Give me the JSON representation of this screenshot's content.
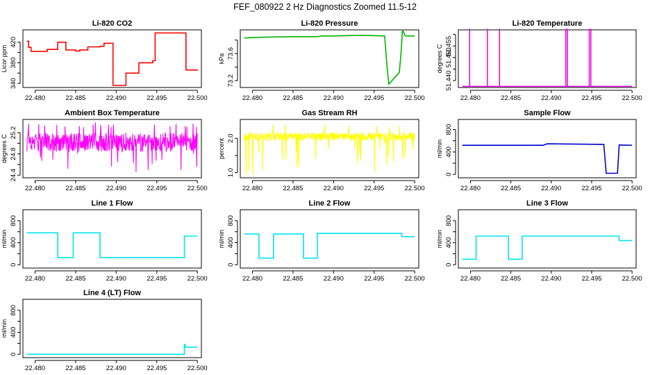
{
  "figure": {
    "suptitle": "FEF_080922  2 Hz Diagnostics Zoomed 11.5-12"
  },
  "chart_data": [
    {
      "type": "line",
      "title": "Li-820 CO2",
      "ylabel": "Licor ppm",
      "color": "#ff0000",
      "xlim": [
        22.4785,
        22.5005
      ],
      "ylim": [
        332,
        444
      ],
      "xticks": [
        22.48,
        22.485,
        22.49,
        22.495,
        22.5
      ],
      "yticks": [
        340,
        360,
        380,
        400,
        420
      ],
      "ytick_labels": [
        "340",
        "",
        "380",
        "",
        "420"
      ],
      "style": "step",
      "series": [
        {
          "x": [
            22.479,
            22.4792,
            22.4795,
            22.481,
            22.4815,
            22.4825,
            22.4828,
            22.4835,
            22.4838,
            22.485,
            22.4855,
            22.4862,
            22.4865,
            22.488,
            22.4885,
            22.4893,
            22.4896,
            22.4908,
            22.4912,
            22.4925,
            22.4928,
            22.4945,
            22.4948,
            22.4983,
            22.4986,
            22.4995,
            22.5
          ],
          "y": [
            422,
            410,
            402,
            402,
            406,
            406,
            420,
            420,
            405,
            403,
            405,
            405,
            411,
            412,
            418,
            418,
            336,
            336,
            360,
            360,
            380,
            384,
            438,
            438,
            366,
            366,
            365
          ]
        }
      ]
    },
    {
      "type": "line",
      "title": "Li-820 Pressure",
      "ylabel": "kPa",
      "color": "#00b300",
      "xlim": [
        22.4785,
        22.5005
      ],
      "ylim": [
        73.1,
        73.95
      ],
      "xticks": [
        22.48,
        22.485,
        22.49,
        22.495,
        22.5
      ],
      "yticks": [
        73.2,
        73.4,
        73.6,
        73.8
      ],
      "ytick_labels": [
        "73.2",
        "",
        "73.6",
        ""
      ],
      "style": "line",
      "series": [
        {
          "x": [
            22.479,
            22.481,
            22.485,
            22.488,
            22.4885,
            22.49,
            22.4935,
            22.4963,
            22.4966,
            22.4968,
            22.4978,
            22.4981,
            22.4983,
            22.4985,
            22.4988,
            22.49895,
            22.5
          ],
          "y": [
            73.83,
            73.84,
            73.85,
            73.85,
            73.86,
            73.86,
            73.87,
            73.86,
            73.4,
            73.15,
            73.28,
            73.32,
            73.58,
            73.95,
            73.87,
            73.86,
            73.86
          ]
        }
      ]
    },
    {
      "type": "line",
      "title": "Li-820 Temperature",
      "ylabel": "degrees C",
      "color": "#e600e6",
      "xlim": [
        22.4785,
        22.5005
      ],
      "ylim": [
        51.437,
        51.462
      ],
      "xticks": [
        22.48,
        22.485,
        22.49,
        22.495,
        22.5
      ],
      "yticks": [
        51.44,
        51.445,
        51.45,
        51.455,
        51.46
      ],
      "ytick_labels": [
        "51.440",
        "",
        "51.450",
        "51.455",
        ""
      ],
      "style": "spikes",
      "baseline": 51.4375,
      "spikes": [
        22.4799,
        22.4821,
        22.4836,
        22.4918,
        22.492,
        22.4947,
        22.4949
      ],
      "spike_top": 51.4625
    },
    {
      "type": "line",
      "title": "Ambient Box Temperature",
      "ylabel": "degrees C",
      "color": "#ff00ff",
      "xlim": [
        22.4785,
        22.5005
      ],
      "ylim": [
        24.35,
        25.45
      ],
      "xticks": [
        22.48,
        22.485,
        22.49,
        22.495,
        22.5
      ],
      "yticks": [
        24.4,
        24.6,
        24.8,
        25.0,
        25.2
      ],
      "ytick_labels": [
        "24.4",
        "",
        "24.8",
        "",
        "25.2"
      ],
      "style": "noise",
      "x_range": [
        22.479,
        22.5
      ],
      "y_center": 25.02,
      "y_spread": 0.18,
      "y_min": 24.4,
      "y_max": 25.4
    },
    {
      "type": "line",
      "title": "Gas Stream RH",
      "ylabel": "percent",
      "color": "#ffff00",
      "xlim": [
        22.4785,
        22.5005
      ],
      "ylim": [
        0.85,
        2.55
      ],
      "xticks": [
        22.48,
        22.485,
        22.49,
        22.495,
        22.5
      ],
      "yticks": [
        1.0,
        1.5,
        2.0
      ],
      "ytick_labels": [
        "1.0",
        "",
        "2.0"
      ],
      "style": "noise",
      "x_range": [
        22.479,
        22.5
      ],
      "y_center": 2.05,
      "y_spread": 0.12,
      "y_min": 0.9,
      "y_max": 2.4
    },
    {
      "type": "line",
      "title": "Sample Flow",
      "ylabel": "ml/min",
      "color": "#0000cc",
      "xlim": [
        22.4785,
        22.5005
      ],
      "ylim": [
        -60,
        980
      ],
      "xticks": [
        22.48,
        22.485,
        22.49,
        22.495,
        22.5
      ],
      "yticks": [
        0,
        200,
        400,
        600,
        800
      ],
      "ytick_labels": [
        "0",
        "",
        "400",
        "",
        "800"
      ],
      "style": "line",
      "series": [
        {
          "x": [
            22.479,
            22.489,
            22.4895,
            22.4965,
            22.4968,
            22.4982,
            22.4984,
            22.5
          ],
          "y": [
            520,
            520,
            545,
            535,
            20,
            20,
            525,
            520
          ]
        }
      ]
    },
    {
      "type": "line",
      "title": "Line 1 Flow",
      "ylabel": "ml/min",
      "color": "#00e5ee",
      "xlim": [
        22.4785,
        22.5005
      ],
      "ylim": [
        -60,
        1000
      ],
      "xticks": [
        22.48,
        22.485,
        22.49,
        22.495,
        22.5
      ],
      "yticks": [
        0,
        200,
        400,
        600,
        800
      ],
      "ytick_labels": [
        "0",
        "",
        "400",
        "",
        "800"
      ],
      "style": "step",
      "series": [
        {
          "x": [
            22.479,
            22.4826,
            22.4828,
            22.4845,
            22.4847,
            22.4878,
            22.488,
            22.4982,
            22.4984,
            22.5
          ],
          "y": [
            580,
            580,
            130,
            130,
            580,
            580,
            130,
            130,
            520,
            520
          ]
        }
      ]
    },
    {
      "type": "line",
      "title": "Line 2 Flow",
      "ylabel": "ml/min",
      "color": "#00e5ee",
      "xlim": [
        22.4785,
        22.5005
      ],
      "ylim": [
        -60,
        1000
      ],
      "xticks": [
        22.48,
        22.485,
        22.49,
        22.495,
        22.5
      ],
      "yticks": [
        0,
        200,
        400,
        600,
        800
      ],
      "ytick_labels": [
        "0",
        "",
        "400",
        "",
        "800"
      ],
      "style": "step",
      "series": [
        {
          "x": [
            22.479,
            22.4806,
            22.4808,
            22.4824,
            22.4826,
            22.4861,
            22.4863,
            22.4878,
            22.488,
            22.4982,
            22.4984,
            22.5
          ],
          "y": [
            560,
            560,
            120,
            120,
            560,
            560,
            120,
            120,
            570,
            570,
            510,
            510
          ]
        }
      ]
    },
    {
      "type": "line",
      "title": "Line 3 Flow",
      "ylabel": "ml/min",
      "color": "#00e5ee",
      "xlim": [
        22.4785,
        22.5005
      ],
      "ylim": [
        -60,
        1000
      ],
      "xticks": [
        22.48,
        22.485,
        22.49,
        22.495,
        22.5
      ],
      "yticks": [
        0,
        200,
        400,
        600,
        800
      ],
      "ytick_labels": [
        "0",
        "",
        "400",
        "",
        "800"
      ],
      "style": "step",
      "series": [
        {
          "x": [
            22.479,
            22.4805,
            22.4807,
            22.4845,
            22.4847,
            22.4862,
            22.4864,
            22.4982,
            22.4984,
            22.5
          ],
          "y": [
            100,
            100,
            520,
            520,
            100,
            100,
            520,
            520,
            440,
            440
          ]
        }
      ]
    },
    {
      "type": "line",
      "title": "Line 4 (LT) Flow",
      "ylabel": "ml/min",
      "color": "#00e5ee",
      "xlim": [
        22.4785,
        22.5005
      ],
      "ylim": [
        -60,
        1000
      ],
      "xticks": [
        22.48,
        22.485,
        22.49,
        22.495,
        22.5
      ],
      "yticks": [
        0,
        200,
        400,
        600,
        800
      ],
      "ytick_labels": [
        "0",
        "",
        "400",
        "",
        "800"
      ],
      "style": "step",
      "series": [
        {
          "x": [
            22.479,
            22.4982,
            22.4984,
            22.4985,
            22.5
          ],
          "y": [
            0,
            0,
            180,
            130,
            130
          ]
        }
      ]
    }
  ]
}
